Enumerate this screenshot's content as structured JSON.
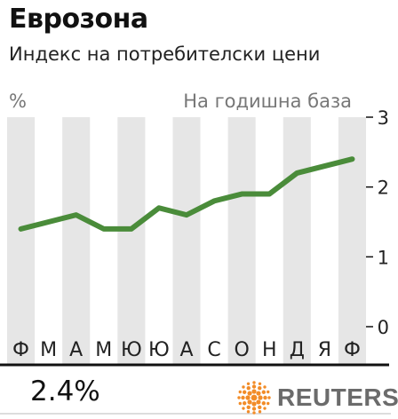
{
  "header": {
    "title": "Еврозона",
    "subtitle": "Индекс на потребителски цени"
  },
  "footer": {
    "latest_value": "2.4%",
    "brand": "REUTERS"
  },
  "colors": {
    "line": "#4a8c3a",
    "band": "#e6e6e6",
    "rule": "#111111",
    "label": "#777777",
    "brand_orange": "#f28c28"
  },
  "chart_data": {
    "type": "line",
    "y_unit_label": "%",
    "annotation": "На годишна база",
    "categories": [
      "Ф",
      "М",
      "А",
      "М",
      "Ю",
      "Ю",
      "А",
      "С",
      "О",
      "Н",
      "Д",
      "Я",
      "Ф"
    ],
    "series": [
      {
        "values": [
          1.4,
          1.5,
          1.6,
          1.4,
          1.4,
          1.7,
          1.6,
          1.8,
          1.9,
          1.9,
          2.2,
          2.3,
          2.4
        ]
      }
    ],
    "yticks": [
      "0",
      "1",
      "2",
      "3"
    ],
    "ylim": [
      0,
      3
    ],
    "grid": false,
    "alternating_bands": true
  }
}
